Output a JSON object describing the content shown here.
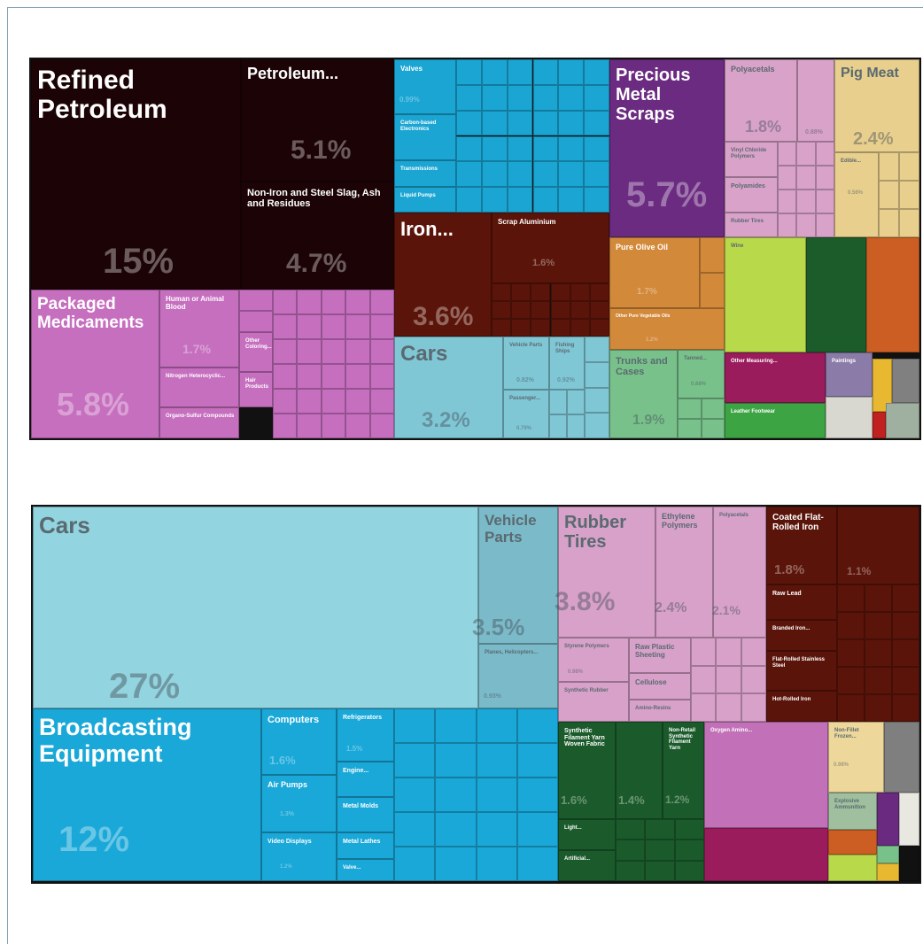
{
  "chart_data": [
    {
      "type": "treemap",
      "items": [
        {
          "name": "Refined Petroleum",
          "value": 15,
          "value_label": "15%",
          "color": "#1c0406"
        },
        {
          "name": "Petroleum...",
          "value": 5.1,
          "value_label": "5.1%",
          "color": "#1c0406"
        },
        {
          "name": "Non-Iron and Steel Slag, Ash and Residues",
          "value": 4.7,
          "value_label": "4.7%",
          "color": "#1c0406"
        },
        {
          "name": "Packaged Medicaments",
          "value": 5.8,
          "value_label": "5.8%",
          "color": "#c66fbf"
        },
        {
          "name": "Human or Animal Blood",
          "value": 1.7,
          "value_label": "1.7%",
          "color": "#c66fbf"
        },
        {
          "name": "Nitrogen Heterocyclic...",
          "color": "#c66fbf"
        },
        {
          "name": "Organo-Sulfur Compounds",
          "color": "#c66fbf"
        },
        {
          "name": "Other Coloring...",
          "color": "#c66fbf"
        },
        {
          "name": "Hair Products",
          "color": "#c66fbf"
        },
        {
          "name": "Valves",
          "value": 0.99,
          "value_label": "0.99%",
          "color": "#1aa5d3"
        },
        {
          "name": "Carbon-based Electronics",
          "color": "#1aa5d3"
        },
        {
          "name": "Transmissions",
          "color": "#1aa5d3"
        },
        {
          "name": "Liquid Pumps",
          "color": "#1aa5d3"
        },
        {
          "name": "Iron...",
          "value": 3.6,
          "value_label": "3.6%",
          "color": "#5a1409"
        },
        {
          "name": "Scrap Aluminium",
          "value": 1.6,
          "value_label": "1.6%",
          "color": "#5a1409"
        },
        {
          "name": "Cars",
          "value": 3.2,
          "value_label": "3.2%",
          "color": "#80c7d6"
        },
        {
          "name": "Vehicle Parts",
          "value": 0.82,
          "value_label": "0.82%",
          "color": "#80c7d6"
        },
        {
          "name": "Fishing Ships",
          "value": 0.92,
          "value_label": "0.92%",
          "color": "#80c7d6"
        },
        {
          "name": "Passenger...",
          "value": 0.79,
          "value_label": "0.79%",
          "color": "#80c7d6"
        },
        {
          "name": "Precious Metal Scraps",
          "value": 5.7,
          "value_label": "5.7%",
          "color": "#6b2b80"
        },
        {
          "name": "Polyacetals",
          "value": 1.8,
          "value_label": "1.8%",
          "color": "#d9a2c9"
        },
        {
          "value": 0.88,
          "value_label": "0.88%",
          "color": "#d9a2c9"
        },
        {
          "name": "Vinyl Chloride Polymers",
          "color": "#d9a2c9"
        },
        {
          "name": "Polyamides",
          "color": "#d9a2c9"
        },
        {
          "name": "Rubber Tires",
          "color": "#d9a2c9"
        },
        {
          "name": "Pig Meat",
          "value": 2.4,
          "value_label": "2.4%",
          "color": "#e8cf8d"
        },
        {
          "name": "Edible...",
          "value": 0.56,
          "value_label": "0.56%",
          "color": "#e8cf8d"
        },
        {
          "name": "Pure Olive Oil",
          "value": 1.7,
          "value_label": "1.7%",
          "color": "#d3893a"
        },
        {
          "name": "Other Pure Vegetable Oils",
          "value": 1.2,
          "value_label": "1.2%",
          "color": "#d3893a"
        },
        {
          "name": "Trunks and Cases",
          "value": 1.9,
          "value_label": "1.9%",
          "color": "#79c18b"
        },
        {
          "name": "Tanned...",
          "value": 0.68,
          "value_label": "0.68%",
          "color": "#79c18b"
        },
        {
          "name": "Wine",
          "color": "#b8d94a"
        },
        {
          "name": "Other Measuring...",
          "color": "#9b1c5c"
        },
        {
          "name": "Leather Footwear",
          "color": "#3da443"
        },
        {
          "name": "Paintings",
          "color": "#8b7ba9"
        }
      ]
    },
    {
      "type": "treemap",
      "items": [
        {
          "name": "Cars",
          "value": 27,
          "value_label": "27%",
          "color": "#92d4df"
        },
        {
          "name": "Vehicle Parts",
          "value": 3.5,
          "value_label": "3.5%",
          "color": "#7bbac9"
        },
        {
          "name": "Planes, Helicopters...",
          "value": 0.93,
          "value_label": "0.93%",
          "color": "#7bbac9"
        },
        {
          "name": "Broadcasting Equipment",
          "value": 12,
          "value_label": "12%",
          "color": "#1aa8d8"
        },
        {
          "name": "Computers",
          "value": 1.6,
          "value_label": "1.6%",
          "color": "#1aa8d8"
        },
        {
          "name": "Air Pumps",
          "value": 1.3,
          "value_label": "1.3%",
          "color": "#1aa8d8"
        },
        {
          "name": "Video Displays",
          "value": 1.2,
          "value_label": "1.2%",
          "color": "#1aa8d8"
        },
        {
          "name": "Refrigerators",
          "value": 1.5,
          "value_label": "1.5%",
          "color": "#1aa8d8"
        },
        {
          "name": "Engine...",
          "color": "#1aa8d8"
        },
        {
          "name": "Metal Molds",
          "color": "#1aa8d8"
        },
        {
          "name": "Metal Lathes",
          "color": "#1aa8d8"
        },
        {
          "name": "Valve...",
          "color": "#1aa8d8"
        },
        {
          "name": "Rubber Tires",
          "value": 3.8,
          "value_label": "3.8%",
          "color": "#d8a1c9"
        },
        {
          "name": "Ethylene Polymers",
          "value": 2.4,
          "value_label": "2.4%",
          "color": "#d8a1c9"
        },
        {
          "name": "Polyacetals",
          "value": 2.1,
          "value_label": "2.1%",
          "color": "#d8a1c9"
        },
        {
          "name": "Styrene Polymers",
          "value": 0.98,
          "value_label": "0.98%",
          "color": "#d8a1c9"
        },
        {
          "name": "Raw Plastic Sheeting",
          "color": "#d8a1c9"
        },
        {
          "name": "Cellulose",
          "color": "#d8a1c9"
        },
        {
          "name": "Synthetic Rubber",
          "color": "#d8a1c9"
        },
        {
          "name": "Amino-Resins",
          "color": "#d8a1c9"
        },
        {
          "name": "Coated Flat-Rolled Iron",
          "value": 1.8,
          "value_label": "1.8%",
          "color": "#5a1409"
        },
        {
          "value": 1.1,
          "value_label": "1.1%",
          "color": "#5a1409"
        },
        {
          "name": "Raw Lead",
          "color": "#5a1409"
        },
        {
          "name": "Branded Iron...",
          "color": "#5a1409"
        },
        {
          "name": "Flat-Rolled Stainless Steel",
          "color": "#5a1409"
        },
        {
          "name": "Hot-Rolled Iron",
          "color": "#5a1409"
        },
        {
          "name": "Synthetic Filament Yarn Woven Fabric",
          "value": 1.6,
          "value_label": "1.6%",
          "color": "#1b5b2b"
        },
        {
          "value": 1.4,
          "value_label": "1.4%",
          "color": "#1b5b2b"
        },
        {
          "name": "Non-Retail Synthetic Filament Yarn",
          "value": 1.2,
          "value_label": "1.2%",
          "color": "#1b5b2b"
        },
        {
          "name": "Light...",
          "color": "#1b5b2b"
        },
        {
          "name": "Artificial...",
          "color": "#1b5b2b"
        },
        {
          "name": "Oxygen Amino...",
          "color": "#c271b9"
        },
        {
          "name": "Non-Fillet Frozen...",
          "value": 0.98,
          "value_label": "0.98%",
          "color": "#eed79b"
        },
        {
          "name": "Explosive Ammunition",
          "color": "#9fbf9f"
        }
      ]
    }
  ]
}
